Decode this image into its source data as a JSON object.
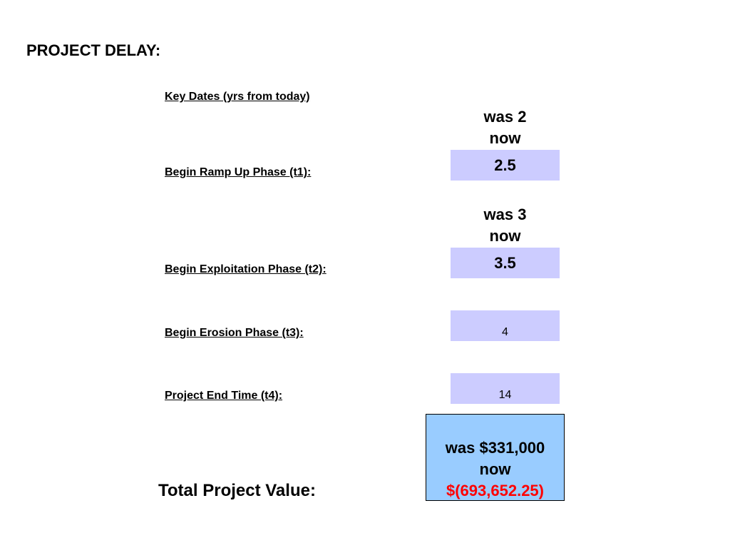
{
  "title": "PROJECT DELAY:",
  "key_dates_label": "Key Dates (yrs from today)",
  "rows": [
    {
      "label": "Begin Ramp Up Phase (t1):",
      "note_was": "was 2",
      "note_now": "now",
      "value": "2.5"
    },
    {
      "label": "Begin Exploitation Phase (t2):",
      "note_was": "was 3",
      "note_now": "now",
      "value": "3.5"
    },
    {
      "label": "Begin Erosion Phase (t3):",
      "value": "4"
    },
    {
      "label": "Project End Time (t4):",
      "value": "14"
    }
  ],
  "total": {
    "label": "Total Project Value:",
    "was": "was $331,000",
    "now": "now",
    "value": "$(693,652.25)",
    "value_color": "#ff0000"
  },
  "colors": {
    "input_cell": "#ccccff",
    "total_cell": "#99ccff"
  }
}
